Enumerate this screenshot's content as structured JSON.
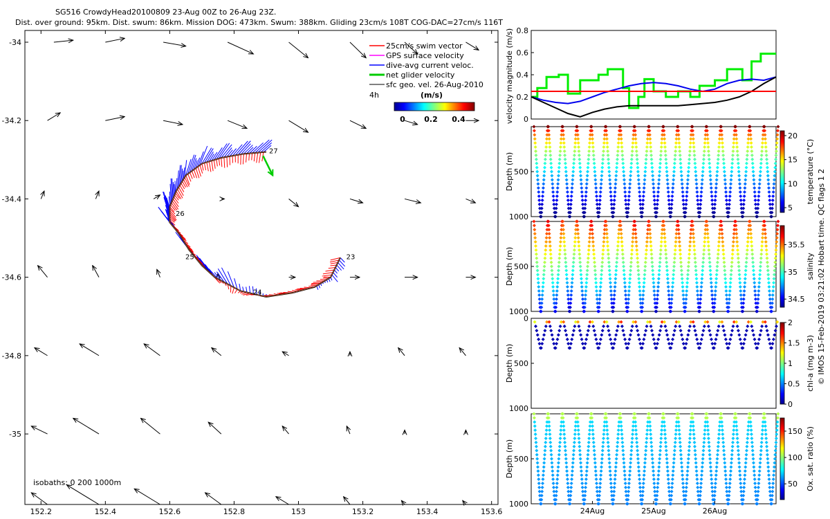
{
  "header": {
    "line1": "SG516 CrowdyHead20100809 23-Aug 00Z to 26-Aug 23Z.",
    "line2": "Dist. over ground: 95km. Dist. swum: 86km. Mission DOG: 473km. Swum: 388km. Gliding 23cm/s 108T COG-DAC=27cm/s 116T"
  },
  "side_label": "© IMOS 15-Feb-2019 03:21:02 Hobart time. QC flags 1  2",
  "colors": {
    "swim": "#ff0000",
    "gps": "#ff00ff",
    "dac": "#0000ff",
    "net": "#00cc00",
    "geo": "#000000",
    "ref_line": "#ff0000"
  },
  "chart_data": [
    {
      "type": "vector-map",
      "title": "Glider track with velocity vectors",
      "xlabel": "",
      "ylabel": "",
      "xlim": [
        152.15,
        153.62
      ],
      "ylim": [
        -35.18,
        -33.97
      ],
      "xticks": [
        "152.2",
        "152.4",
        "152.6",
        "152.8",
        "153",
        "153.2",
        "153.4",
        "153.6"
      ],
      "xtick_values": [
        152.2,
        152.4,
        152.6,
        152.8,
        153.0,
        153.2,
        153.4,
        153.6
      ],
      "yticks": [
        "-34",
        "-34.2",
        "-34.4",
        "-34.6",
        "-34.8",
        "-35"
      ],
      "ytick_values": [
        -34.0,
        -34.2,
        -34.4,
        -34.6,
        -34.8,
        -35.0
      ],
      "legend": {
        "placement": "top-right",
        "entries": [
          "25cm/s swim vector",
          "GPS surface velocity",
          "dive-avg current veloc.",
          "net glider velocity",
          "sfc geo. vel. 26-Aug-2010"
        ],
        "interval": "4h",
        "colorbar_title": "(m/s)",
        "colorbar_ticks": [
          "0",
          "0.2",
          "0.4"
        ]
      },
      "track": {
        "lon": [
          153.13,
          153.1,
          153.05,
          152.98,
          152.9,
          152.82,
          152.74,
          152.7,
          152.66,
          152.63,
          152.6,
          152.6,
          152.62,
          152.65,
          152.7,
          152.76,
          152.83,
          152.9
        ],
        "lat": [
          -34.55,
          -34.6,
          -34.625,
          -34.64,
          -34.65,
          -34.635,
          -34.6,
          -34.57,
          -34.53,
          -34.49,
          -34.46,
          -34.42,
          -34.38,
          -34.34,
          -34.31,
          -34.295,
          -34.285,
          -34.28
        ],
        "day_labels": [
          {
            "text": "23",
            "lon": 153.14,
            "lat": -34.55
          },
          {
            "text": "24",
            "lon": 152.85,
            "lat": -34.64
          },
          {
            "text": "25",
            "lon": 152.64,
            "lat": -34.55
          },
          {
            "text": "26",
            "lon": 152.61,
            "lat": -34.44
          },
          {
            "text": "27",
            "lon": 152.9,
            "lat": -34.28
          }
        ]
      },
      "net_velocity": {
        "from": [
          152.89,
          -34.29
        ],
        "to": [
          152.92,
          -34.34
        ]
      },
      "geo_vectors": [
        [
          152.24,
          -34.0,
          0.06,
          0.005
        ],
        [
          152.4,
          -34.0,
          0.06,
          0.01
        ],
        [
          152.58,
          -34.0,
          0.07,
          -0.01
        ],
        [
          152.78,
          -34.0,
          0.08,
          -0.03
        ],
        [
          152.97,
          -34.0,
          0.06,
          -0.04
        ],
        [
          153.16,
          -34.0,
          0.05,
          -0.04
        ],
        [
          153.33,
          -34.0,
          0.04,
          -0.03
        ],
        [
          153.52,
          -34.0,
          0.04,
          -0.02
        ],
        [
          152.22,
          -34.2,
          0.04,
          0.02
        ],
        [
          152.4,
          -34.2,
          0.06,
          0.01
        ],
        [
          152.58,
          -34.2,
          0.06,
          -0.01
        ],
        [
          152.78,
          -34.2,
          0.06,
          -0.02
        ],
        [
          152.97,
          -34.2,
          0.06,
          -0.03
        ],
        [
          153.16,
          -34.2,
          0.05,
          -0.02
        ],
        [
          153.33,
          -34.2,
          0.04,
          -0.01
        ],
        [
          153.52,
          -34.2,
          0.04,
          0.0
        ],
        [
          152.2,
          -34.4,
          0.01,
          0.02
        ],
        [
          152.37,
          -34.4,
          0.01,
          0.02
        ],
        [
          152.55,
          -34.4,
          0.02,
          0.01
        ],
        [
          152.76,
          -34.4,
          0.01,
          0.0
        ],
        [
          152.97,
          -34.4,
          0.03,
          -0.02
        ],
        [
          153.16,
          -34.4,
          0.04,
          -0.01
        ],
        [
          153.33,
          -34.4,
          0.05,
          -0.01
        ],
        [
          153.52,
          -34.4,
          0.03,
          -0.01
        ],
        [
          152.22,
          -34.6,
          -0.03,
          0.03
        ],
        [
          152.38,
          -34.6,
          -0.02,
          0.03
        ],
        [
          152.57,
          -34.6,
          -0.01,
          0.02
        ],
        [
          152.75,
          -34.6,
          0.0,
          0.01
        ],
        [
          152.97,
          -34.6,
          0.02,
          0.0
        ],
        [
          153.16,
          -34.6,
          0.03,
          0.0
        ],
        [
          153.33,
          -34.6,
          0.04,
          0.0
        ],
        [
          153.52,
          -34.6,
          0.03,
          0.0
        ],
        [
          152.22,
          -34.8,
          -0.04,
          0.02
        ],
        [
          152.38,
          -34.8,
          -0.06,
          0.03
        ],
        [
          152.57,
          -34.8,
          -0.05,
          0.03
        ],
        [
          152.76,
          -34.8,
          -0.03,
          0.02
        ],
        [
          152.97,
          -34.8,
          -0.02,
          0.01
        ],
        [
          153.16,
          -34.8,
          0.0,
          0.01
        ],
        [
          153.33,
          -34.8,
          -0.02,
          0.02
        ],
        [
          153.52,
          -34.8,
          -0.02,
          0.02
        ],
        [
          152.22,
          -35.0,
          -0.05,
          0.02
        ],
        [
          152.38,
          -35.0,
          -0.08,
          0.04
        ],
        [
          152.57,
          -35.0,
          -0.06,
          0.04
        ],
        [
          152.76,
          -35.0,
          -0.04,
          0.03
        ],
        [
          152.97,
          -35.0,
          -0.02,
          0.02
        ],
        [
          153.16,
          -35.0,
          -0.01,
          0.02
        ],
        [
          153.33,
          -35.0,
          0.0,
          0.01
        ],
        [
          153.52,
          -35.0,
          0.0,
          0.01
        ],
        [
          152.22,
          -35.18,
          -0.05,
          0.03
        ],
        [
          152.38,
          -35.18,
          -0.1,
          0.05
        ],
        [
          152.57,
          -35.18,
          -0.08,
          0.04
        ],
        [
          152.76,
          -35.18,
          -0.05,
          0.03
        ],
        [
          152.97,
          -35.18,
          -0.04,
          0.02
        ],
        [
          153.16,
          -35.18,
          -0.02,
          0.02
        ],
        [
          153.33,
          -35.18,
          -0.01,
          0.01
        ],
        [
          153.52,
          -35.18,
          -0.01,
          0.01
        ]
      ],
      "annotation": "isobaths: 0  200  1000m"
    },
    {
      "type": "line",
      "title": "",
      "xlabel": "",
      "ylabel": "velocity magnitude (m/s)",
      "xlim": [
        0,
        4
      ],
      "ylim": [
        0,
        0.8
      ],
      "yticks": [
        "0",
        "0.2",
        "0.4",
        "0.6",
        "0.8"
      ],
      "ytick_values": [
        0,
        0.2,
        0.4,
        0.6,
        0.8
      ],
      "series": [
        {
          "name": "net glider velocity",
          "color": "#00ee00",
          "x": [
            0,
            0.1,
            0.1,
            0.25,
            0.25,
            0.45,
            0.45,
            0.6,
            0.6,
            0.8,
            0.8,
            1.1,
            1.1,
            1.25,
            1.25,
            1.5,
            1.5,
            1.6,
            1.6,
            1.75,
            1.75,
            1.85,
            1.85,
            2.0,
            2.0,
            2.2,
            2.2,
            2.4,
            2.4,
            2.6,
            2.6,
            2.75,
            2.75,
            3.0,
            3.0,
            3.2,
            3.2,
            3.45,
            3.45,
            3.6,
            3.6,
            3.75,
            3.75,
            4.0
          ],
          "y": [
            0.2,
            0.2,
            0.28,
            0.28,
            0.38,
            0.38,
            0.4,
            0.4,
            0.23,
            0.23,
            0.35,
            0.35,
            0.4,
            0.4,
            0.45,
            0.45,
            0.28,
            0.28,
            0.1,
            0.1,
            0.2,
            0.2,
            0.36,
            0.36,
            0.25,
            0.25,
            0.2,
            0.2,
            0.25,
            0.25,
            0.2,
            0.2,
            0.3,
            0.3,
            0.35,
            0.35,
            0.45,
            0.45,
            0.35,
            0.35,
            0.52,
            0.52,
            0.59,
            0.59
          ]
        },
        {
          "name": "dive-avg current",
          "color": "#0000ee",
          "x": [
            0,
            0.2,
            0.4,
            0.6,
            0.8,
            1.0,
            1.2,
            1.4,
            1.6,
            1.8,
            2.0,
            2.2,
            2.4,
            2.6,
            2.8,
            3.0,
            3.2,
            3.4,
            3.6,
            3.8,
            4.0
          ],
          "y": [
            0.2,
            0.17,
            0.15,
            0.14,
            0.16,
            0.2,
            0.24,
            0.27,
            0.3,
            0.32,
            0.33,
            0.32,
            0.3,
            0.27,
            0.25,
            0.27,
            0.32,
            0.35,
            0.36,
            0.35,
            0.38
          ]
        },
        {
          "name": "sfc geo. vel.",
          "color": "#000000",
          "x": [
            0,
            0.2,
            0.4,
            0.6,
            0.8,
            1.0,
            1.2,
            1.4,
            1.6,
            1.8,
            2.0,
            2.2,
            2.4,
            2.6,
            2.8,
            3.0,
            3.2,
            3.4,
            3.6,
            3.8,
            4.0
          ],
          "y": [
            0.2,
            0.15,
            0.1,
            0.05,
            0.02,
            0.06,
            0.09,
            0.11,
            0.12,
            0.12,
            0.12,
            0.12,
            0.12,
            0.13,
            0.14,
            0.15,
            0.17,
            0.2,
            0.25,
            0.32,
            0.38
          ]
        },
        {
          "name": "25cm/s reference",
          "color": "#ff0000",
          "x": [
            0,
            4
          ],
          "y": [
            0.25,
            0.25
          ]
        }
      ]
    },
    {
      "type": "scatter",
      "title": "",
      "xlabel": "",
      "ylabel": "Depth (m)",
      "ylim": [
        1000,
        0
      ],
      "yticks": [
        "500",
        "1000"
      ],
      "ytick_values": [
        500,
        1000
      ],
      "colorbar_label": "temperature (°C)",
      "colorbar_ticks": [
        "5",
        "10",
        "15",
        "20"
      ],
      "colorbar_range": [
        4,
        21
      ],
      "profiles": 34
    },
    {
      "type": "scatter",
      "title": "",
      "xlabel": "",
      "ylabel": "Depth (m)",
      "ylim": [
        1000,
        0
      ],
      "yticks": [
        "500",
        "1000"
      ],
      "ytick_values": [
        500,
        1000
      ],
      "colorbar_label": "salinity",
      "colorbar_ticks": [
        "34.5",
        "35",
        "35.5"
      ],
      "colorbar_range": [
        34.35,
        35.85
      ],
      "profiles": 34
    },
    {
      "type": "scatter",
      "title": "",
      "xlabel": "",
      "ylabel": "Depth (m)",
      "ylim": [
        1000,
        0
      ],
      "yticks": [
        "0",
        "500",
        "1000"
      ],
      "ytick_values": [
        0,
        500,
        1000
      ],
      "colorbar_label": "chl-a (mg m-3)",
      "colorbar_ticks": [
        "0",
        "0.5",
        "1",
        "1.5",
        "2"
      ],
      "colorbar_range": [
        0,
        2
      ],
      "profiles": 34
    },
    {
      "type": "scatter",
      "title": "",
      "xlabel": "",
      "ylabel": "Depth (m)",
      "ylim": [
        1000,
        0
      ],
      "yticks": [
        "500",
        "1000"
      ],
      "ytick_values": [
        500,
        1000
      ],
      "colorbar_label": "Ox. sat. ratio (%)",
      "colorbar_ticks": [
        "50",
        "100",
        "150"
      ],
      "colorbar_range": [
        20,
        175
      ],
      "profiles": 34,
      "xticks": [
        "24Aug",
        "25Aug",
        "26Aug"
      ],
      "xtick_values": [
        1,
        2,
        3
      ]
    }
  ]
}
